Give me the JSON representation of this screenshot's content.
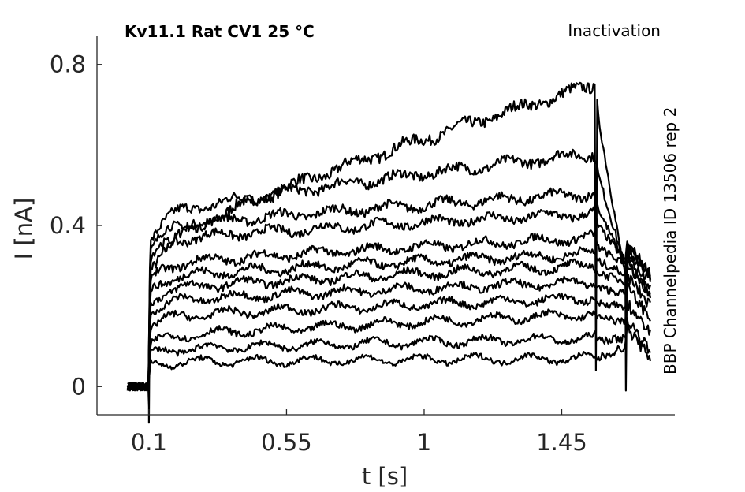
{
  "chart_data": {
    "type": "line",
    "title": "Kv11.1  Rat  CV1  25 °C",
    "protocol": "Inactivation",
    "side_note": "BBP Channelpedia ID 13506 rep 2",
    "xlabel": "t [s]",
    "ylabel": "I [nA]",
    "xticks": [
      0.1,
      0.55,
      1,
      1.45
    ],
    "xtick_labels": [
      "0.1",
      "0.55",
      "1",
      "1.45"
    ],
    "yticks": [
      0,
      0.4,
      0.8
    ],
    "ytick_labels": [
      "0",
      "0.4",
      "0.8"
    ],
    "xlim": [
      -0.07,
      1.82
    ],
    "ylim": [
      -0.07,
      0.87
    ],
    "grid": false,
    "color": "#000000",
    "pulse_times": {
      "baseline_start": 0.03,
      "step_on": 0.1,
      "step_off": 1.56,
      "tail_dip": 1.66,
      "end": 1.74
    },
    "series": [
      {
        "start": 0.33,
        "end": 0.75,
        "tail": 0.26
      },
      {
        "start": 0.42,
        "end": 0.58,
        "tail": 0.29
      },
      {
        "start": 0.39,
        "end": 0.48,
        "tail": 0.3
      },
      {
        "start": 0.36,
        "end": 0.43,
        "tail": 0.31
      },
      {
        "start": 0.3,
        "end": 0.37,
        "tail": 0.3
      },
      {
        "start": 0.27,
        "end": 0.33,
        "tail": 0.28
      },
      {
        "start": 0.24,
        "end": 0.3,
        "tail": 0.26
      },
      {
        "start": 0.21,
        "end": 0.26,
        "tail": 0.23
      },
      {
        "start": 0.17,
        "end": 0.22,
        "tail": 0.2
      },
      {
        "start": 0.12,
        "end": 0.18,
        "tail": 0.16
      },
      {
        "start": 0.09,
        "end": 0.12,
        "tail": 0.12
      },
      {
        "start": 0.06,
        "end": 0.07,
        "tail": 0.1
      }
    ]
  }
}
